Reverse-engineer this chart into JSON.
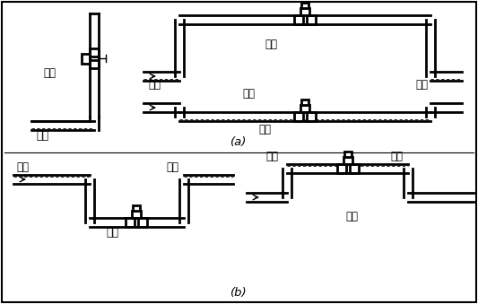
{
  "bg_color": "#ffffff",
  "line_color": "#000000",
  "label_a": "(a)",
  "label_b": "(b)",
  "correct": "正确",
  "wrong": "错误",
  "liquid": "液体",
  "bubble": "气泡",
  "font_size": 8.5,
  "lw": 2.0,
  "lw_thin": 0.7,
  "p": 5
}
